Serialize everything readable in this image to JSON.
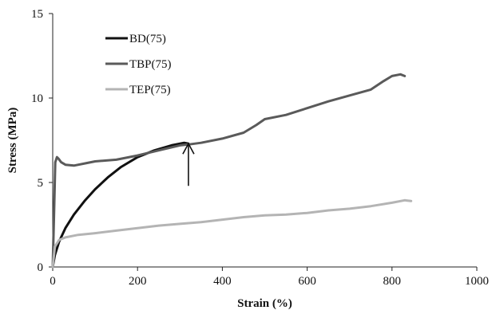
{
  "chart_data": {
    "type": "line",
    "title": "",
    "xlabel": "Strain (%)",
    "ylabel": "Stress (MPa)",
    "xlim": [
      0,
      1000
    ],
    "ylim": [
      0,
      15
    ],
    "x_ticks": [
      "0",
      "200",
      "400",
      "600",
      "800",
      "1000"
    ],
    "y_ticks": [
      "0",
      "5",
      "10",
      "15"
    ],
    "grid": false,
    "legend_position": "top-left",
    "series": [
      {
        "name": "BD(75)",
        "color": "#111111",
        "width": 3,
        "x": [
          0,
          5,
          15,
          30,
          50,
          75,
          100,
          130,
          160,
          200,
          240,
          280,
          310,
          320
        ],
        "y": [
          0,
          0.7,
          1.5,
          2.3,
          3.1,
          3.9,
          4.6,
          5.3,
          5.9,
          6.5,
          6.9,
          7.2,
          7.35,
          7.3
        ]
      },
      {
        "name": "TBP(75)",
        "color": "#5a5a5a",
        "width": 3,
        "x": [
          0,
          3,
          6,
          10,
          14,
          20,
          30,
          50,
          80,
          100,
          150,
          200,
          250,
          300,
          320,
          350,
          400,
          450,
          480,
          500,
          550,
          600,
          650,
          700,
          750,
          780,
          800,
          820,
          830
        ],
        "y": [
          0,
          3.0,
          6.2,
          6.5,
          6.4,
          6.2,
          6.05,
          6.0,
          6.15,
          6.25,
          6.35,
          6.6,
          6.9,
          7.2,
          7.25,
          7.35,
          7.6,
          7.95,
          8.4,
          8.75,
          9.0,
          9.4,
          9.8,
          10.15,
          10.5,
          11.0,
          11.3,
          11.4,
          11.3
        ]
      },
      {
        "name": "TEP(75)",
        "color": "#b4b4b4",
        "width": 3,
        "x": [
          0,
          5,
          15,
          30,
          60,
          100,
          150,
          200,
          250,
          300,
          350,
          400,
          450,
          500,
          550,
          600,
          650,
          700,
          750,
          800,
          830,
          845
        ],
        "y": [
          0,
          1.2,
          1.6,
          1.75,
          1.9,
          2.0,
          2.15,
          2.3,
          2.45,
          2.55,
          2.65,
          2.8,
          2.95,
          3.05,
          3.1,
          3.2,
          3.35,
          3.45,
          3.6,
          3.8,
          3.95,
          3.9
        ]
      }
    ],
    "annotations": [
      {
        "type": "arrow",
        "direction": "up",
        "x": 320,
        "y_from": 4.8,
        "y_to": 7.3
      }
    ]
  }
}
